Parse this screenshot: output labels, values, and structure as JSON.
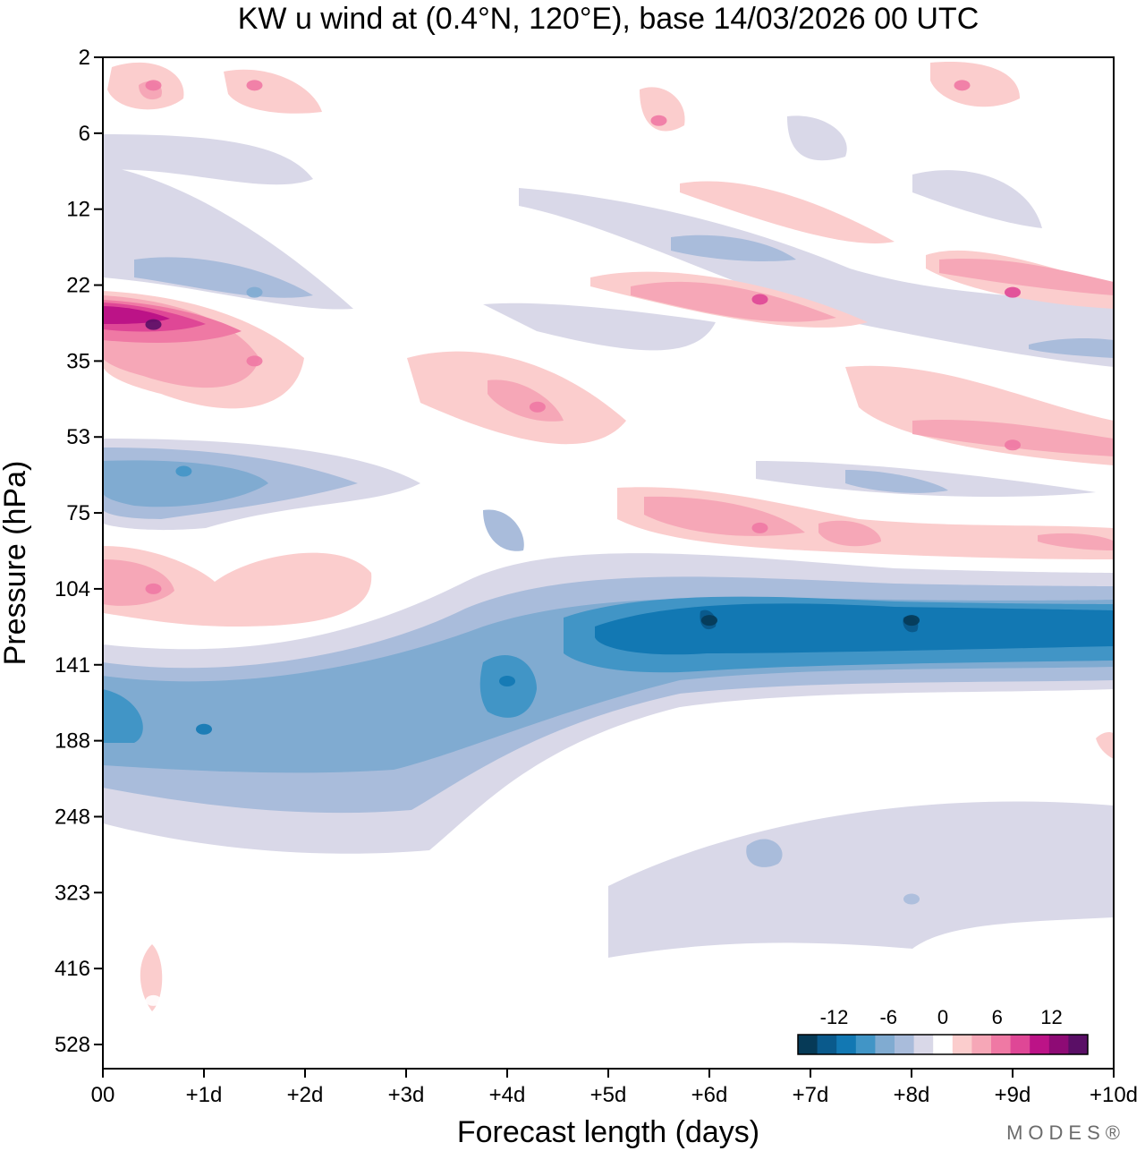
{
  "chart_data": {
    "type": "heatmap",
    "title": "KW u wind at (0.4°N, 120°E),  base 14/03/2026  00 UTC",
    "xlabel": "Forecast length (days)",
    "ylabel": "Pressure (hPa)",
    "xlim": [
      0,
      10
    ],
    "x_ticks": [
      0,
      1,
      2,
      3,
      4,
      5,
      6,
      7,
      8,
      9,
      10
    ],
    "x_tick_labels": [
      "00",
      "+1d",
      "+2d",
      "+3d",
      "+4d",
      "+5d",
      "+6d",
      "+7d",
      "+8d",
      "+9d",
      "+10d"
    ],
    "y_tick_labels": [
      "2",
      "6",
      "12",
      "22",
      "35",
      "53",
      "75",
      "104",
      "141",
      "188",
      "248",
      "323",
      "416",
      "528"
    ],
    "levels": [
      -16,
      -14,
      -12,
      -10,
      -8,
      -6,
      -4,
      -2,
      2,
      4,
      6,
      8,
      10,
      12,
      14,
      16
    ],
    "colorbar": {
      "tick_labels": [
        "-12",
        "-6",
        "0",
        "6",
        "12"
      ],
      "colors": [
        "#063a57",
        "#0a5a8c",
        "#1278b3",
        "#4195c6",
        "#80abd1",
        "#a9bcdb",
        "#d9d8e8",
        "#ffffff",
        "#fbcdcd",
        "#f6a7b7",
        "#ef79a4",
        "#df4796",
        "#bc1387",
        "#8e0b75",
        "#5a0f66"
      ]
    },
    "cells": [
      {
        "t": 0.5,
        "p": 3,
        "u": 6,
        "name": "upper-stratosphere-westerly-day0"
      },
      {
        "t": 1.5,
        "p": 3,
        "u": 6,
        "name": "upper-stratosphere-westerly-day1"
      },
      {
        "t": 5.5,
        "p": 5,
        "u": 6,
        "name": "upper-stratosphere-westerly-day5"
      },
      {
        "t": 8.5,
        "p": 3,
        "u": 6,
        "name": "upper-stratosphere-westerly-day8"
      },
      {
        "t": 1.5,
        "p": 23,
        "u": -6,
        "name": "stratosphere-easterly-22hPa"
      },
      {
        "t": 0.5,
        "p": 28,
        "u": 14,
        "name": "strong-westerly-28hPa"
      },
      {
        "t": 1.5,
        "p": 35,
        "u": 6,
        "name": "westerly-35hPa"
      },
      {
        "t": 4.3,
        "p": 45,
        "u": 6,
        "name": "westerly-45hPa-day4"
      },
      {
        "t": 6.5,
        "p": 24,
        "u": 8,
        "name": "westerly-24hPa-day6"
      },
      {
        "t": 9.0,
        "p": 23,
        "u": 8,
        "name": "westerly-22hPa-day9"
      },
      {
        "t": 9.0,
        "p": 55,
        "u": 6,
        "name": "westerly-55hPa-day9"
      },
      {
        "t": 0.8,
        "p": 62,
        "u": -8,
        "name": "easterly-62hPa"
      },
      {
        "t": 6.5,
        "p": 80,
        "u": 6,
        "name": "westerly-80hPa"
      },
      {
        "t": 0.5,
        "p": 104,
        "u": 6,
        "name": "westerly-104hPa"
      },
      {
        "t": 1.0,
        "p": 180,
        "u": -10,
        "name": "easterly-188hPa"
      },
      {
        "t": 4.0,
        "p": 150,
        "u": -10,
        "name": "easterly-150hPa"
      },
      {
        "t": 6.0,
        "p": 118,
        "u": -14,
        "name": "strong-easterly-118hPa-day6"
      },
      {
        "t": 8.0,
        "p": 118,
        "u": -14,
        "name": "strong-easterly-118hPa-day8"
      },
      {
        "t": 8.0,
        "p": 330,
        "u": -4,
        "name": "weak-easterly-330hPa"
      },
      {
        "t": 0.5,
        "p": 460,
        "u": 2,
        "name": "weak-westerly-460hPa"
      }
    ]
  },
  "branding": {
    "text": "MODES®"
  }
}
